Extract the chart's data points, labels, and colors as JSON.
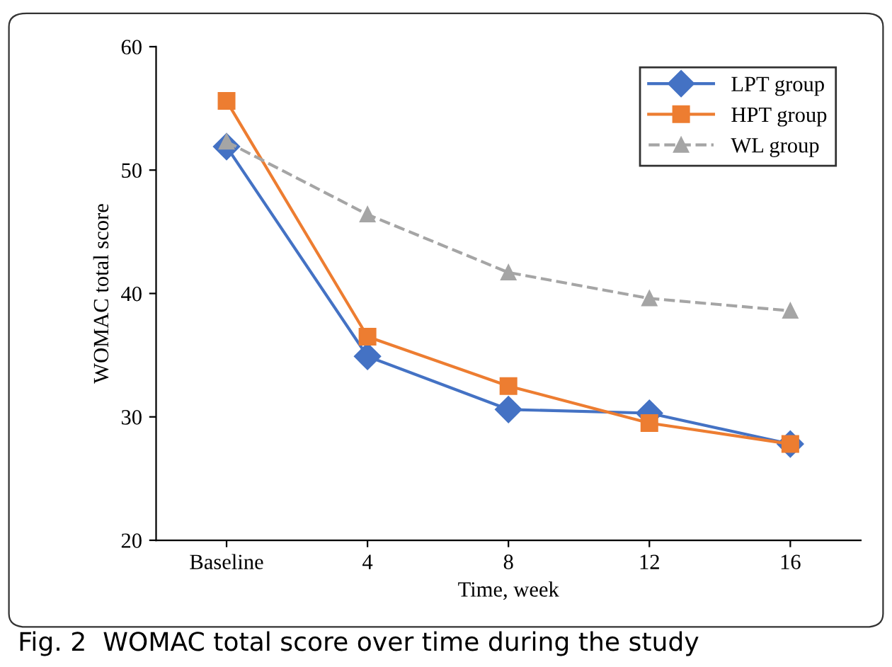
{
  "chart_data": {
    "type": "line",
    "xlabel": "Time, week",
    "ylabel": "WOMAC total score",
    "categories": [
      "Baseline",
      "4",
      "8",
      "12",
      "16"
    ],
    "series": [
      {
        "name": "LPT group",
        "color": "#4472c4",
        "marker": "diamond",
        "line_style": "solid",
        "values": [
          51.9,
          34.9,
          30.6,
          30.3,
          27.8
        ]
      },
      {
        "name": "HPT group",
        "color": "#ed7d31",
        "marker": "square",
        "line_style": "solid",
        "values": [
          55.6,
          36.5,
          32.5,
          29.5,
          27.8
        ]
      },
      {
        "name": "WL group",
        "color": "#a5a5a5",
        "marker": "triangle",
        "line_style": "dashed",
        "values": [
          52.3,
          46.4,
          41.7,
          39.6,
          38.6
        ]
      }
    ],
    "ylim": [
      20,
      60
    ],
    "yticks": [
      20,
      30,
      40,
      50,
      60
    ],
    "grid": false,
    "legend": "top right",
    "annotations": [
      "Fig. 2  WOMAC total score over time during the study"
    ]
  }
}
